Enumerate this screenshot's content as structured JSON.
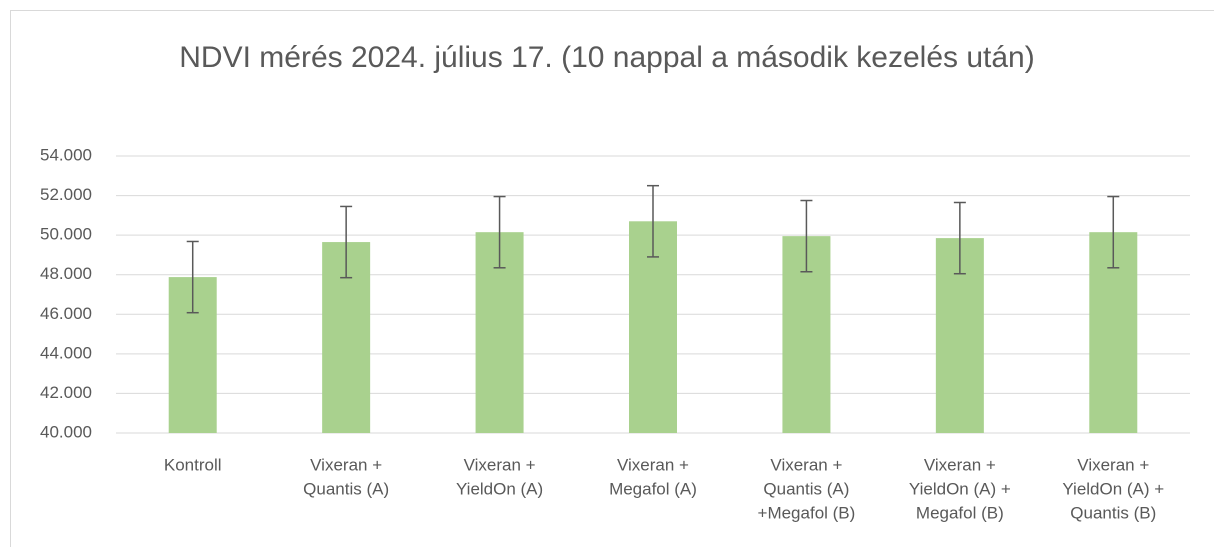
{
  "chart_data": {
    "type": "bar",
    "title": "NDVI mérés 2024. július 17. (10 nappal a második kezelés után)",
    "categories": [
      [
        "Kontroll"
      ],
      [
        "Vixeran +",
        "Quantis (A)"
      ],
      [
        "Vixeran +",
        "YieldOn (A)"
      ],
      [
        "Vixeran +",
        "Megafol (A)"
      ],
      [
        "Vixeran +",
        "Quantis (A)",
        "+Megafol (B)"
      ],
      [
        "Vixeran +",
        "YieldOn (A) +",
        "Megafol (B)"
      ],
      [
        "Vixeran +",
        "YieldOn (A)  +",
        "Quantis (B)"
      ]
    ],
    "values": [
      47.88,
      49.65,
      50.15,
      50.7,
      49.95,
      49.85,
      50.15
    ],
    "errors": [
      1.8,
      1.8,
      1.8,
      1.8,
      1.8,
      1.8,
      1.8
    ],
    "color": "#a9d18e",
    "error_color": "#595959",
    "ylim": [
      40,
      54
    ],
    "yticks": [
      {
        "value": 40,
        "label": "40.000"
      },
      {
        "value": 42,
        "label": "42.000"
      },
      {
        "value": 44,
        "label": "44.000"
      },
      {
        "value": 46,
        "label": "46.000"
      },
      {
        "value": 48,
        "label": "48.000"
      },
      {
        "value": 50,
        "label": "50.000"
      },
      {
        "value": 52,
        "label": "52.000"
      },
      {
        "value": 54,
        "label": "54.000"
      }
    ],
    "grid": true
  }
}
